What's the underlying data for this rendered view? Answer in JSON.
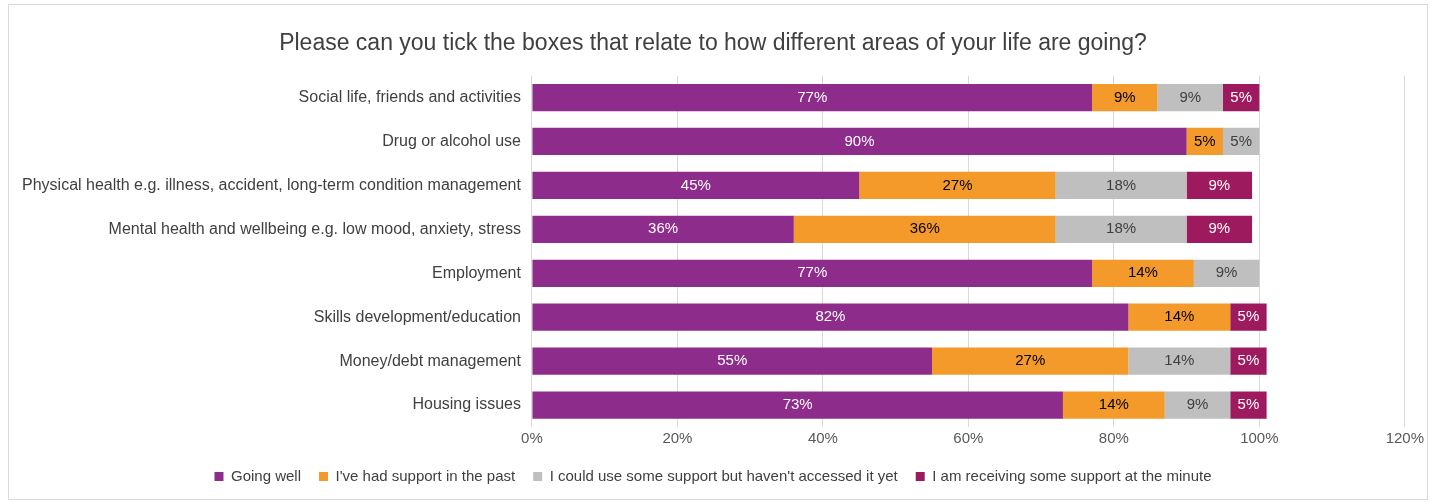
{
  "chart_data": {
    "type": "bar",
    "orientation": "horizontal",
    "stacked": true,
    "title": "Please can you tick the boxes that relate to how different areas of your life are going?",
    "categories": [
      "Social life, friends and activities",
      "Drug or alcohol use",
      "Physical health e.g. illness, accident, long-term condition management",
      "Mental health and wellbeing e.g. low mood, anxiety, stress",
      "Employment",
      "Skills development/education",
      "Money/debt management",
      "Housing issues"
    ],
    "series": [
      {
        "name": "Going well",
        "color": "#8e2c8c",
        "values": [
          77,
          90,
          45,
          36,
          77,
          82,
          55,
          73
        ],
        "value_labels": [
          "77%",
          "90%",
          "45%",
          "36%",
          "77%",
          "82%",
          "55%",
          "73%"
        ]
      },
      {
        "name": "I've had support in the past",
        "color": "#f39a2b",
        "values": [
          9,
          5,
          27,
          36,
          14,
          14,
          27,
          14
        ],
        "value_labels": [
          "9%",
          "5%",
          "27%",
          "36%",
          "14%",
          "14%",
          "27%",
          "14%"
        ]
      },
      {
        "name": "I could use some support but haven't accessed it yet",
        "color": "#bfbfbf",
        "values": [
          9,
          5,
          18,
          18,
          9,
          null,
          14,
          9
        ],
        "value_labels": [
          "9%",
          "5%",
          "18%",
          "18%",
          "9%",
          null,
          "14%",
          "9%"
        ]
      },
      {
        "name": "I am receiving some support at the minute",
        "color": "#9e1a5f",
        "values": [
          5,
          null,
          9,
          9,
          null,
          5,
          5,
          5
        ],
        "value_labels": [
          "5%",
          null,
          "9%",
          "9%",
          null,
          "5%",
          "5%",
          "5%"
        ]
      }
    ],
    "xlim": [
      0,
      120
    ],
    "xticks": [
      {
        "value": 0,
        "label": "0%"
      },
      {
        "value": 20,
        "label": "20%"
      },
      {
        "value": 40,
        "label": "40%"
      },
      {
        "value": 60,
        "label": "60%"
      },
      {
        "value": 80,
        "label": "80%"
      },
      {
        "value": 100,
        "label": "100%"
      },
      {
        "value": 120,
        "label": "120%"
      }
    ],
    "grid": "x",
    "legend": "bottom"
  }
}
